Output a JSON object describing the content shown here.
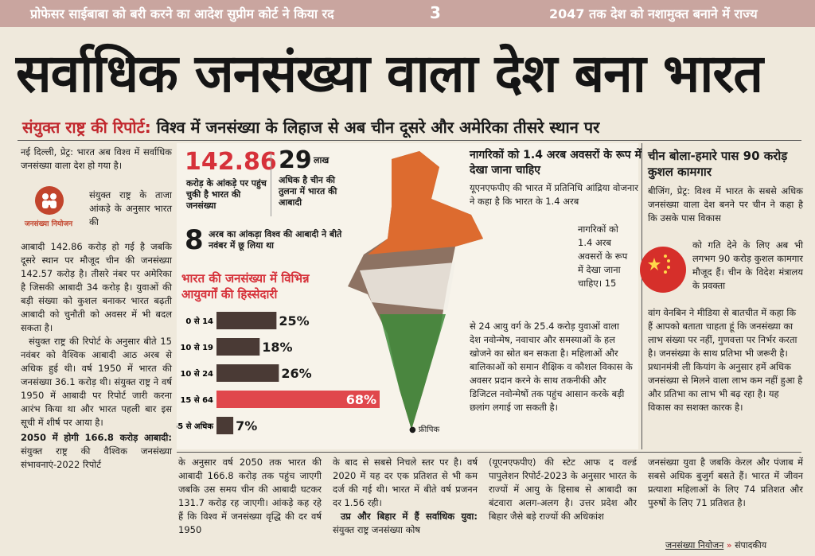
{
  "topbar": {
    "left_headline": "प्रोफेसर साईबाबा को बरी करने का आदेश सुप्रीम कोर्ट ने किया रद",
    "page_number": "3",
    "right_headline": "2047 तक देश को नशामुक्त बनाने में राज्य"
  },
  "headline": "सर्वाधिक जनसंख्या वाला देश बना भारत",
  "subhead": {
    "kicker": "संयुक्त राष्ट्र की रिपोर्ट:",
    "text": "विश्व में जनसंख्या के लिहाज से अब चीन दूसरे और अमेरिका तीसरे स्थान पर"
  },
  "logo": {
    "label": "जनसंख्या नियोजन"
  },
  "col1": {
    "p1_top": "नई दिल्ली, प्रेट्र: भारत अब विश्व में सर्वाधिक जनसंख्या वाला देश हो गया है।",
    "p1_wrap": "संयुक्त राष्ट्र के ताजा आंकड़े के अनुसार भारत की",
    "p1_rest": "आबादी 142.86 करोड़ हो गई है जबकि दूसरे स्थान पर मौजूद चीन की जनसंख्या 142.57 करोड़ है। तीसरे नंबर पर अमेरिका है जिसकी आबादी 34 करोड़ है। युवाओं की बड़ी संख्या को कुशल बनाकर भारत बढ़ती आबादी को चुनौती को अवसर में भी बदल सकता है।",
    "p2": "संयुक्त राष्ट्र की रिपोर्ट के अनुसार बीते 15 नवंबर को वैश्विक आबादी आठ अरब से अधिक हुई थी। वर्ष 1950 में भारत की जनसंख्या 36.1 करोड़ थी। संयुक्त राष्ट्र ने वर्ष 1950 में आबादी पर रिपोर्ट जारी करना आरंभ किया था और भारत पहली बार इस सूची में शीर्ष पर आया है।",
    "p3_bold": "2050 में होगी 166.8 करोड़ आबादी:",
    "p3": "संयुक्त राष्ट्र की वैश्विक जनसंख्या संभावनाएं-2022 रिपोर्ट"
  },
  "info": {
    "stat1_value": "142.86",
    "stat1_text": "करोड़ के आंकड़े पर पहुंच चुकी है भारत की जनसंख्या",
    "stat2_value": "29",
    "stat2_unit": "लाख",
    "stat2_text": "अधिक है चीन की तुलना में भारत की आबादी",
    "stat3_value": "8",
    "stat3_text": "अरब का आंकड़ा विश्व की आबादी ने बीते नवंबर में छू लिया था",
    "chart_title": "भारत की जनसंख्या में विभिन्न आयुवर्गों की हिस्सेदारी",
    "photo_credit": "● फ्रीपिक"
  },
  "chart_data": {
    "type": "bar",
    "orientation": "horizontal",
    "title": "भारत की जनसंख्या में विभिन्न आयुवर्गों की हिस्सेदारी",
    "categories": [
      "0 से 14",
      "10 से 19",
      "10 से 24",
      "15 से 64",
      "65 से अधिक"
    ],
    "values": [
      25,
      18,
      26,
      68,
      7
    ],
    "value_labels": [
      "25%",
      "18%",
      "26%",
      "68%",
      "7%"
    ],
    "xlim": [
      0,
      68
    ],
    "highlight_color": "#e0474c",
    "bar_color": "#4a3a35"
  },
  "mid_text": {
    "heading": "नागरिकों को 1.4 अरब अवसरों के रूप में देखा जाना चाहिए",
    "body_top": "यूएनएफपीए की भारत में प्रतिनिधि आंद्रिया वोजनार ने कहा है कि भारत के 1.4 अरब",
    "body_side": "नागरिकों को 1.4 अरब अवसरों के रूप में देखा जाना चाहिए। 15",
    "body_bottom": "से 24 आयु वर्ग के 25.4 करोड़ युवाओं वाला देश नवोन्मेष, नवाचार और समस्याओं के हल खोजने का स्रोत बन सकता है। महिलाओं और बालिकाओं को समान शैक्षिक व कौशल विकास के अवसर प्रदान करने के साथ तकनीकी और डिजिटल नवोन्मेषों तक पहुंच आसान करके बड़ी छलांग लगाई जा सकती है।"
  },
  "right_col": {
    "heading": "चीन बोला-हमारे पास 90 करोड़ कुशल कामगार",
    "body_top": "बीजिंग, प्रेट्र: विश्व में भारत के सबसे अधिक जनसंख्या वाला देश बनने पर चीन ने कहा है कि उसके पास विकास",
    "body_wrap": "को गति देने के लिए अब भी लगभग 90 करोड़ कुशल कामगार मौजूद हैं। चीन के विदेश मंत्रालय के प्रवक्ता",
    "body_rest": "वांग वेनबिन ने मीडिया से बातचीत में कहा कि हैं आपको बताता चाहता हूं कि जनसंख्या का लाभ संख्या पर नहीं, गुणवत्ता पर निर्भर करता है। जनसंख्या के साथ प्रतिभा भी जरूरी है। प्रधानमंत्री ली कियांग के अनुसार हमें अधिक जनसंख्या से मिलने वाला लाभ कम नहीं हुआ है और प्रतिभा का लाभ भी बढ़ रहा है। यह विकास का सशक्त कारक है।"
  },
  "bottom": {
    "c2": "के अनुसार वर्ष 2050 तक भारत की आबादी 166.8 करोड़ तक पहुंच जाएगी जबकि उस समय चीन की आबादी घटकर 131.7 करोड़ रह जाएगी। आंकड़े कह रहे हैं कि विश्व में जनसंख्या वृद्धि की दर वर्ष 1950",
    "c3": "के बाद से सबसे निचले स्तर पर है। वर्ष 2020 में यह दर एक प्रतिशत से भी कम दर्ज की गई थी। भारत में बीते वर्ष प्रजनन दर 1.56 रही।",
    "c3_bold": "उप्र और बिहार में हैं सर्वाधिक युवा:",
    "c3_tail": "संयुक्त राष्ट्र जनसंख्या कोष",
    "c4": "(यूएनएफपीए) की स्टेट आफ द वर्ल्ड पापुलेशन रिपोर्ट-2023 के अनुसार भारत के राज्यों में आयु के हिसाब से आबादी का बंटवारा अलग-अलग है। उत्तर प्रदेश और बिहार जैसे बड़े राज्यों की अधिकांश",
    "c5": "जनसंख्या युवा है जबकि केरल और पंजाब में सबसे अधिक बुजुर्ग बसते हैं। भारत में जीवन प्रत्याशा महिलाओं के लिए 74 प्रतिशत और पुरुषों के लिए 71 प्रतिशत है।",
    "signoff": "जनसंख्या नियोजन",
    "signoff_arrow": "»",
    "signoff_tail": "संपादकीय"
  }
}
